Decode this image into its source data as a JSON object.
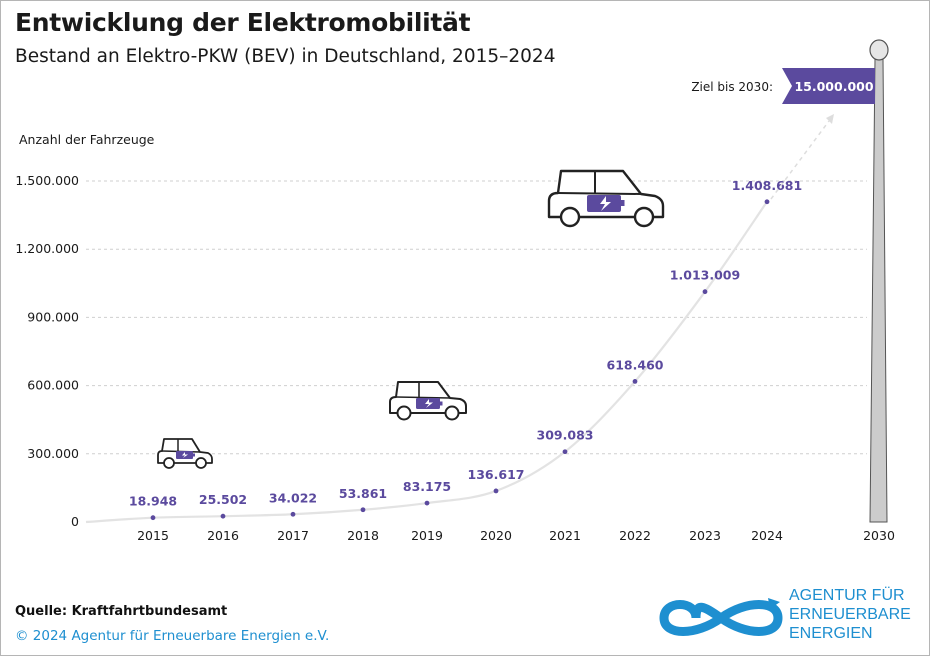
{
  "header": {
    "title": "Entwicklung der Elektromobilität",
    "subtitle": "Bestand an Elektro-PKW (BEV) in Deutschland, 2015–2024"
  },
  "chart_data": {
    "type": "line",
    "title": "Entwicklung der Elektromobilität",
    "subtitle": "Bestand an Elektro-PKW (BEV) in Deutschland, 2015–2024",
    "ylabel": "Anzahl der Fahrzeuge",
    "xlabel": "",
    "ylim": [
      0,
      1500000
    ],
    "yticks": [
      0,
      300000,
      600000,
      900000,
      1200000,
      1500000
    ],
    "ytick_labels": [
      "0",
      "300.000",
      "600.000",
      "900.000",
      "1.200.000",
      "1.500.000"
    ],
    "grid": true,
    "categories": [
      "2015",
      "2016",
      "2017",
      "2018",
      "2019",
      "2020",
      "2021",
      "2022",
      "2023",
      "2024"
    ],
    "values": [
      18948,
      25502,
      34022,
      53861,
      83175,
      136617,
      309083,
      618460,
      1013009,
      1408681
    ],
    "value_labels": [
      "18.948",
      "25.502",
      "34.022",
      "53.861",
      "83.175",
      "136.617",
      "309.083",
      "618.460",
      "1.013.009",
      "1.408.681"
    ],
    "target": {
      "year": "2030",
      "label": "Ziel bis 2030:",
      "value": 15000000,
      "value_label": "15.000.000"
    },
    "colors": {
      "accent": "#5b4a9e",
      "line": "#e3e3e3",
      "grid": "#cfcfcf",
      "pole": "#cccccc"
    }
  },
  "footer": {
    "source": "Quelle: Kraftfahrtbundesamt",
    "copyright": "© 2024 Agentur für Erneuerbare Energien e.V."
  },
  "logo": {
    "lines": [
      "AGENTUR FÜR",
      "ERNEUERBARE",
      "ENERGIEN"
    ],
    "color": "#1e8fd0"
  },
  "icons": [
    "small-car-icon",
    "medium-car-icon",
    "large-car-icon",
    "battery-charging-icon",
    "infinity-logo-icon"
  ]
}
